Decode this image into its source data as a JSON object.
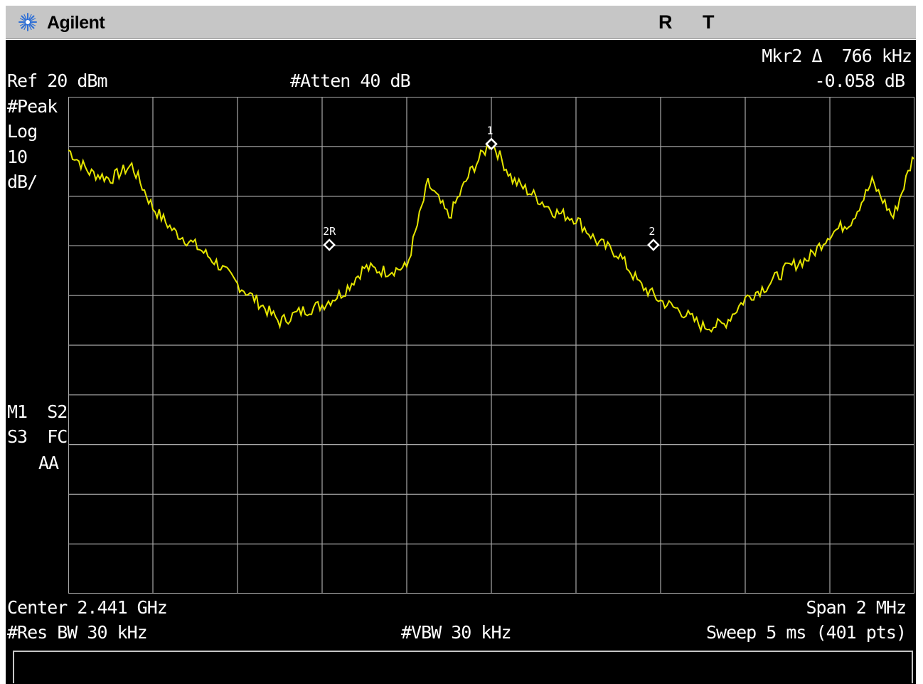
{
  "titlebar": {
    "brand": "Agilent",
    "indicator_r": "R",
    "indicator_t": "T"
  },
  "marker_readout": {
    "line1": "Mkr2 Δ  766 kHz",
    "line2": "-0.058 dB"
  },
  "settings": {
    "ref": "Ref 20 dBm",
    "atten": "#Atten 40 dB",
    "detector": "#Peak",
    "scale_type": "Log",
    "scale_value": "10",
    "scale_unit": "dB/",
    "flags_line1": "M1  S2",
    "flags_line2": "S3  FC",
    "flags_line3": "AA",
    "center": "Center 2.441 GHz",
    "span": "Span 2 MHz",
    "rbw": "#Res BW 30 kHz",
    "vbw": "#VBW 30 kHz",
    "sweep": "Sweep 5 ms (401 pts)"
  },
  "markers": [
    {
      "label": "1",
      "offset_khz": 0,
      "level_db": 0
    },
    {
      "label": "2R",
      "offset_khz": -383,
      "level_db": -20.3
    },
    {
      "label": "2",
      "offset_khz": 383,
      "level_db": -20.3
    }
  ],
  "colors": {
    "trace": "#e6e600",
    "grid": "#a8a8a8",
    "background": "#000000",
    "text": "#ffffff",
    "titlebar": "#c6c6c6"
  },
  "chart_data": {
    "type": "line",
    "x_unit": "kHz offset from 2.441 GHz",
    "y_unit": "dBm",
    "xlim": [
      -1000,
      1000
    ],
    "ylim": [
      -80,
      20
    ],
    "grid": true,
    "x": [
      -1000,
      -950,
      -900,
      -850,
      -800,
      -750,
      -700,
      -650,
      -600,
      -550,
      -500,
      -450,
      -400,
      -350,
      -300,
      -250,
      -200,
      -150,
      -100,
      -50,
      0,
      50,
      100,
      150,
      200,
      250,
      300,
      350,
      400,
      450,
      500,
      550,
      600,
      650,
      700,
      750,
      800,
      850,
      900,
      950,
      1000
    ],
    "y": [
      9.3,
      4.8,
      3.5,
      6.2,
      -2.3,
      -7.1,
      -9.9,
      -13.4,
      -17.7,
      -21.4,
      -25.3,
      -23.2,
      -21.9,
      -19.3,
      -14.4,
      -15.1,
      -14.3,
      2.6,
      -4.2,
      4.8,
      11.1,
      3.3,
      0.2,
      -3.2,
      -4.5,
      -9.2,
      -11.6,
      -17.7,
      -21.1,
      -23.2,
      -26.3,
      -25.8,
      -20.6,
      -18.1,
      -14.4,
      -12.5,
      -7.6,
      -5.0,
      2.8,
      -4.3,
      8.5
    ]
  }
}
